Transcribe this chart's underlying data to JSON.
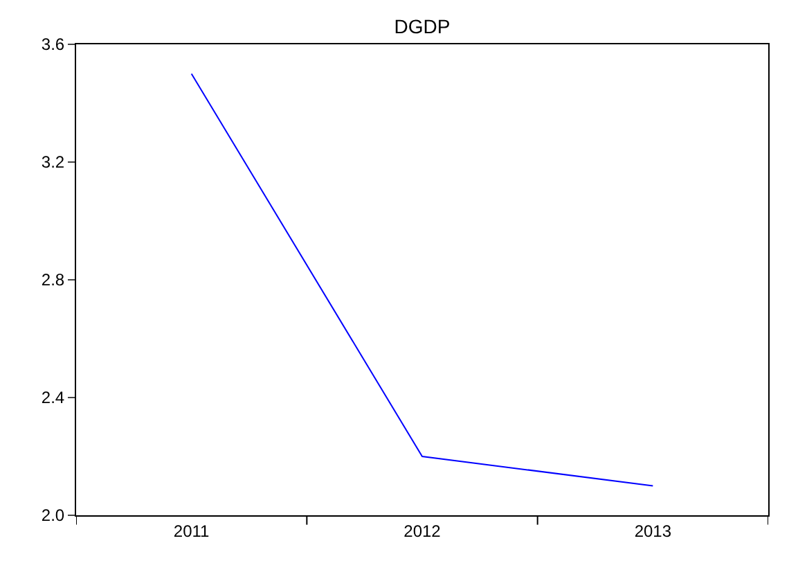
{
  "chart_data": {
    "type": "line",
    "title": "DGDP",
    "categories": [
      "2011",
      "2012",
      "2013"
    ],
    "series": [
      {
        "color": "#0000ff",
        "values": [
          3.5,
          2.2,
          2.1
        ]
      }
    ],
    "ylim": [
      2.0,
      3.6
    ],
    "yticks": [
      {
        "value": 2.0,
        "label": "2.0"
      },
      {
        "value": 2.4,
        "label": "2.4"
      },
      {
        "value": 2.8,
        "label": "2.8"
      },
      {
        "value": 3.2,
        "label": "3.2"
      },
      {
        "value": 3.6,
        "label": "3.6"
      }
    ],
    "grid": false,
    "marker": "none",
    "line_style": "solid"
  }
}
